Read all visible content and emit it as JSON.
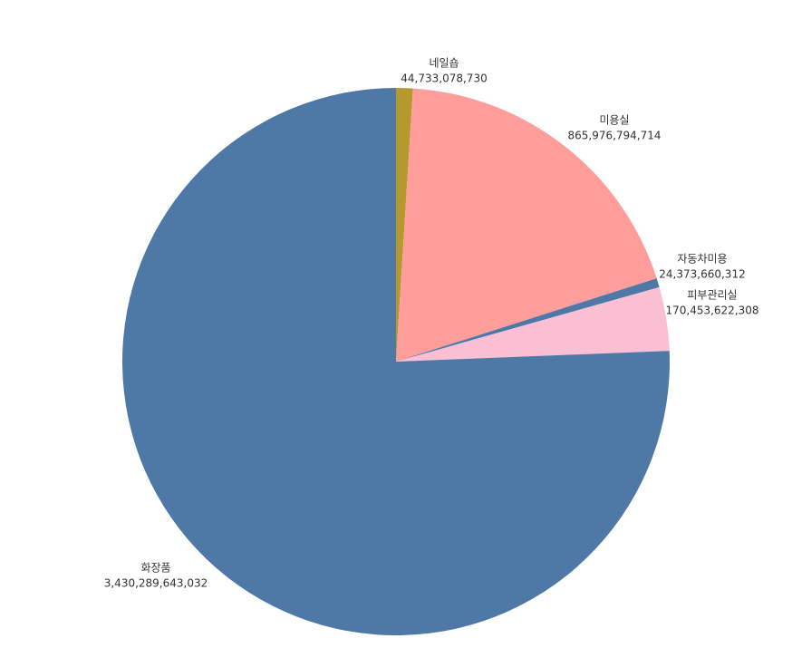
{
  "chart_data": {
    "type": "pie",
    "categories": [
      "네일숍",
      "미용실",
      "자동차미용",
      "피부관리실",
      "화장품"
    ],
    "values": [
      44733078730,
      865976794714,
      24373660312,
      170453622308,
      3430289643032
    ],
    "value_labels": [
      "44,733,078,730",
      "865,976,794,714",
      "24,373,660,312",
      "170,453,622,308",
      "3,430,289,643,032"
    ],
    "colors": [
      "#b6992d",
      "#ff9d9a",
      "#4e79a7",
      "#fabfd2",
      "#4e79a7"
    ]
  }
}
